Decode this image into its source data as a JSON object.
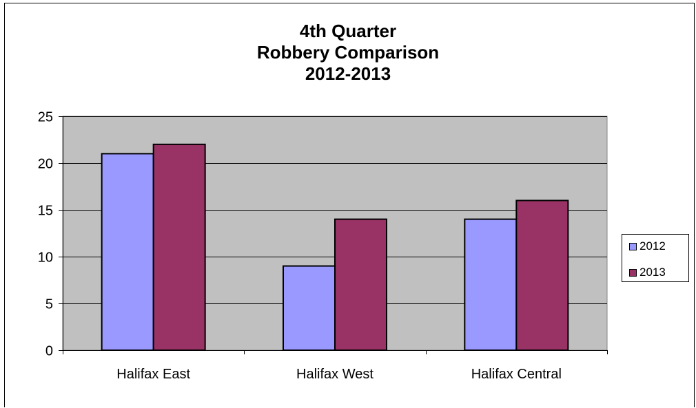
{
  "chart_data": {
    "type": "bar",
    "title_lines": [
      "4th Quarter",
      "Robbery Comparison",
      "2012-2013"
    ],
    "categories": [
      "Halifax East",
      "Halifax West",
      "Halifax Central"
    ],
    "series": [
      {
        "name": "2012",
        "values": [
          21,
          9,
          14
        ],
        "color": "#9999ff"
      },
      {
        "name": "2013",
        "values": [
          22,
          14,
          16
        ],
        "color": "#993366"
      }
    ],
    "ylim": [
      0,
      25
    ],
    "yticks": [
      "0",
      "5",
      "10",
      "15",
      "20",
      "25"
    ],
    "grid": true,
    "plot_background": "#c0c0c0",
    "legend_position": "right"
  }
}
